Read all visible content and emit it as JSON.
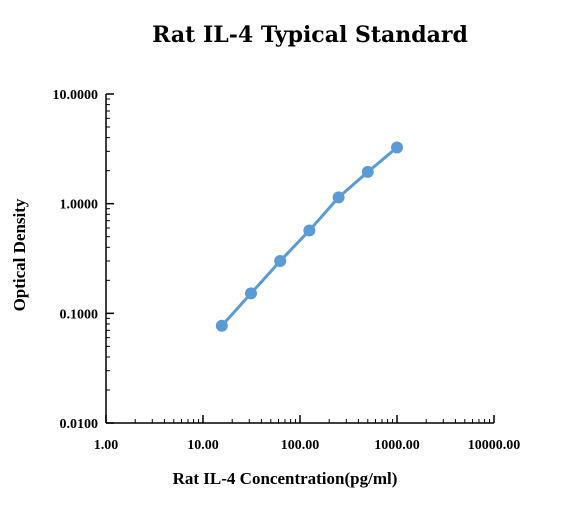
{
  "chart_data": {
    "type": "line",
    "title": "Rat IL-4 Typical Standard",
    "xlabel": "Rat IL-4  Concentration(pg/ml)",
    "ylabel": "Optical Density",
    "x_scale": "log",
    "y_scale": "log",
    "xlim": [
      1,
      10000
    ],
    "ylim": [
      0.01,
      10
    ],
    "x_ticks": [
      "1.00",
      "10.00",
      "100.00",
      "1000.00",
      "10000.00"
    ],
    "y_ticks": [
      "0.0100",
      "0.1000",
      "1.0000",
      "10.0000"
    ],
    "grid": false,
    "series": [
      {
        "color": "#5b9bd5",
        "x": [
          15.63,
          31.25,
          62.5,
          125,
          250,
          500,
          1000
        ],
        "y": [
          0.077,
          0.152,
          0.3,
          0.57,
          1.14,
          1.95,
          3.25
        ]
      }
    ]
  }
}
